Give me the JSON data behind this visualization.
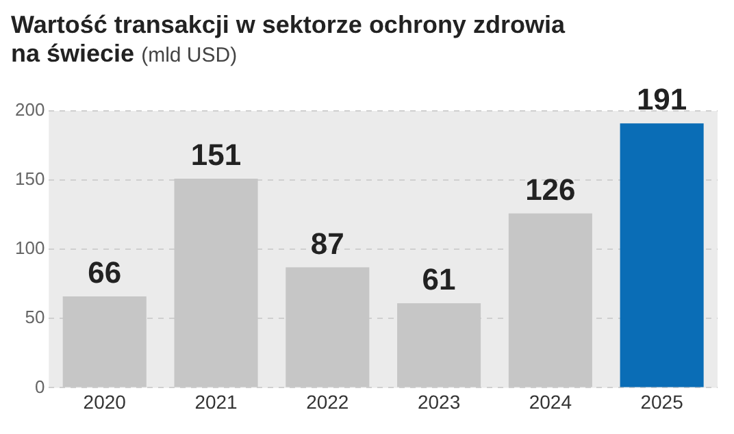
{
  "chart_data": {
    "type": "bar",
    "title": "Wartość transakcji w sektorze ochrony zdrowia na świecie",
    "subtitle": "(mld USD)",
    "categories": [
      "2020",
      "2021",
      "2022",
      "2023",
      "2024",
      "2025"
    ],
    "values": [
      66,
      151,
      87,
      61,
      126,
      191
    ],
    "colors": [
      "#c6c6c6",
      "#c6c6c6",
      "#c6c6c6",
      "#c6c6c6",
      "#c6c6c6",
      "#0a6db6"
    ],
    "ylim": [
      0,
      200
    ],
    "yticks": [
      0,
      50,
      100,
      150,
      200
    ],
    "grid": "y",
    "legend": false,
    "data_labels": true
  }
}
